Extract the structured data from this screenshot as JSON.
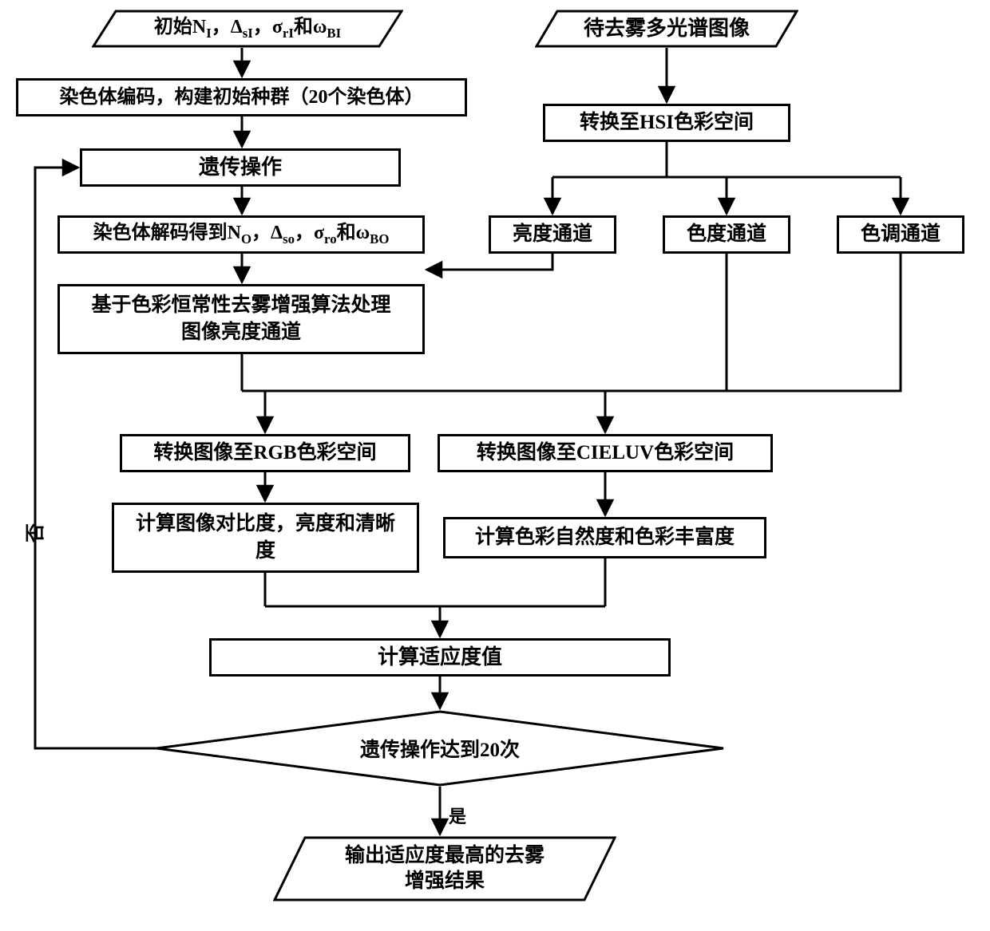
{
  "stroke": "#000000",
  "stroke_width": 3,
  "font_main": 24,
  "font_small": 22,
  "nodes": {
    "in_left": {
      "text": "初始N_I，Δ_sI，σ_rI和ω_BI"
    },
    "in_right": {
      "text": "待去雾多光谱图像"
    },
    "n2": {
      "text": "染色体编码，构建初始种群（20个染色体）"
    },
    "n3": {
      "text": "遗传操作"
    },
    "n4": {
      "text": "染色体解码得到N_O，Δ_so，σ_ro和ω_BO"
    },
    "n5a": {
      "text": "基于色彩恒常性去雾增强算法处理"
    },
    "n5b": {
      "text": "图像亮度通道"
    },
    "hsi": {
      "text": "转换至HSI色彩空间"
    },
    "ch1": {
      "text": "亮度通道"
    },
    "ch2": {
      "text": "色度通道"
    },
    "ch3": {
      "text": "色调通道"
    },
    "rgb": {
      "text": "转换图像至RGB色彩空间"
    },
    "luv": {
      "text": "转换图像至CIELUV色彩空间"
    },
    "m1a": {
      "text": "计算图像对比度，亮度和清晰"
    },
    "m1b": {
      "text": "度"
    },
    "m2": {
      "text": "计算色彩自然度和色彩丰富度"
    },
    "fit": {
      "text": "计算适应度值"
    },
    "dec": {
      "text": "遗传操作达到20次"
    },
    "out_a": {
      "text": "输出适应度最高的去雾"
    },
    "out_b": {
      "text": "增强结果"
    },
    "no": {
      "text": "否"
    },
    "yes": {
      "text": "是"
    }
  }
}
